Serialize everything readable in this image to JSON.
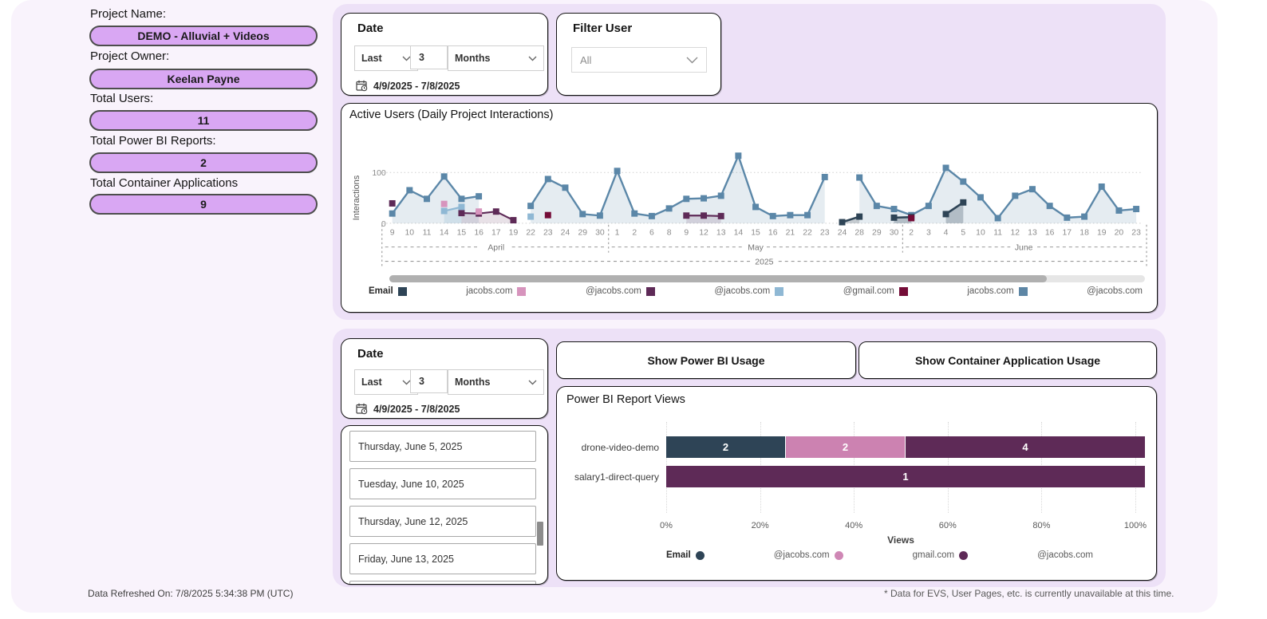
{
  "sidebar": {
    "fields": [
      {
        "label": "Project Name:",
        "value": "DEMO - Alluvial + Videos"
      },
      {
        "label": "Project Owner:",
        "value": "Keelan Payne"
      },
      {
        "label": "Total Users:",
        "value": "11"
      },
      {
        "label": "Total Power BI Reports:",
        "value": "2"
      },
      {
        "label": "Total Container Applications",
        "value": "9"
      }
    ],
    "refresh_note": "Data Refreshed On: 7/8/2025 5:34:38 PM (UTC)"
  },
  "filters": {
    "date_top": {
      "title": "Date",
      "mode": "Last",
      "count": "3",
      "unit": "Months",
      "range": "4/9/2025 - 7/8/2025"
    },
    "user": {
      "title": "Filter User",
      "value": "All"
    },
    "date_bottom": {
      "title": "Date",
      "mode": "Last",
      "count": "3",
      "unit": "Months",
      "range": "4/9/2025 - 7/8/2025"
    }
  },
  "buttons": {
    "power_bi": "Show Power BI Usage",
    "container": "Show Container Application Usage"
  },
  "date_list": [
    "Thursday, June 5, 2025",
    "Tuesday, June 10, 2025",
    "Thursday, June 12, 2025",
    "Friday, June 13, 2025"
  ],
  "footnote": "* Data for EVS, User Pages, etc. is currently unavailable at this time.",
  "chart_data": [
    {
      "type": "line",
      "title": "Active Users (Daily Project Interactions)",
      "ylabel": "Interactions",
      "yticks": [
        0,
        100
      ],
      "ylim": [
        0,
        140
      ],
      "year_label": "2025",
      "categories": [
        "9",
        "10",
        "11",
        "14",
        "15",
        "16",
        "17",
        "19",
        "22",
        "23",
        "24",
        "29",
        "30",
        "1",
        "2",
        "6",
        "8",
        "9",
        "12",
        "13",
        "14",
        "15",
        "16",
        "21",
        "22",
        "23",
        "24",
        "28",
        "29",
        "30",
        "2",
        "3",
        "4",
        "5",
        "10",
        "11",
        "12",
        "13",
        "16",
        "17",
        "18",
        "19",
        "20",
        "23"
      ],
      "month_groups": [
        {
          "label": "April",
          "start": 0,
          "end": 12
        },
        {
          "label": "May",
          "start": 13,
          "end": 29
        },
        {
          "label": "June",
          "start": 30,
          "end": 43
        }
      ],
      "series": [
        {
          "name": "jacobs.com",
          "color": "#5b87a8",
          "fill": "rgba(91,135,168,0.16)",
          "area": true,
          "lw": 2.4,
          "msize": 8,
          "values": [
            19,
            65,
            48,
            92,
            48,
            53,
            null,
            null,
            34,
            87,
            70,
            18,
            15,
            103,
            19,
            14,
            29,
            48,
            49,
            54,
            133,
            32,
            14,
            16,
            16,
            91,
            null,
            90,
            34,
            28,
            16,
            34,
            109,
            82,
            51,
            10,
            54,
            67,
            34,
            11,
            13,
            72,
            25,
            28
          ]
        },
        {
          "name": "Email",
          "color": "#2e4456",
          "fill": "rgba(46,68,86,0.28)",
          "area": true,
          "lw": 2.6,
          "msize": 8,
          "values": [
            null,
            null,
            null,
            null,
            null,
            null,
            null,
            null,
            null,
            null,
            null,
            null,
            null,
            null,
            null,
            null,
            null,
            null,
            null,
            null,
            null,
            null,
            null,
            null,
            null,
            null,
            2,
            13,
            null,
            11,
            12,
            null,
            18,
            41,
            null,
            null,
            null,
            null,
            null,
            null,
            null,
            null,
            null,
            null
          ]
        },
        {
          "name": "@jacobs.com",
          "color": "#5e2a57",
          "fill": "rgba(94,42,87,0.14)",
          "area": true,
          "lw": 2.2,
          "msize": 8,
          "values": [
            39,
            null,
            null,
            null,
            20,
            19,
            23,
            6,
            null,
            null,
            null,
            null,
            null,
            null,
            null,
            null,
            null,
            15,
            15,
            14,
            null,
            null,
            null,
            null,
            null,
            null,
            null,
            null,
            null,
            null,
            null,
            null,
            null,
            null,
            null,
            null,
            null,
            null,
            null,
            null,
            null,
            null,
            null,
            null
          ]
        },
        {
          "name": "@jacobs.com",
          "color": "#8fb8d4",
          "fill": "rgba(143,184,212,0.25)",
          "area": true,
          "lw": 2.2,
          "msize": 8,
          "values": [
            null,
            null,
            null,
            24,
            32,
            null,
            null,
            null,
            13,
            null,
            null,
            null,
            null,
            null,
            null,
            null,
            null,
            null,
            null,
            null,
            null,
            null,
            null,
            null,
            null,
            null,
            null,
            null,
            null,
            null,
            null,
            null,
            null,
            null,
            null,
            null,
            null,
            null,
            null,
            null,
            null,
            null,
            null,
            null
          ]
        },
        {
          "name": "jacobs.com",
          "color": "#d794bd",
          "area": false,
          "lw": 2,
          "msize": 8,
          "values": [
            null,
            null,
            null,
            38,
            null,
            23,
            null,
            null,
            null,
            null,
            null,
            null,
            null,
            null,
            null,
            null,
            null,
            null,
            null,
            null,
            null,
            null,
            null,
            null,
            null,
            null,
            null,
            null,
            null,
            null,
            null,
            null,
            null,
            null,
            null,
            null,
            null,
            null,
            null,
            null,
            null,
            null,
            null,
            null
          ]
        },
        {
          "name": "@gmail.com",
          "color": "#740c37",
          "area": false,
          "lw": 2,
          "msize": 8,
          "values": [
            null,
            null,
            null,
            null,
            null,
            null,
            null,
            null,
            null,
            16,
            null,
            null,
            null,
            null,
            null,
            null,
            null,
            null,
            null,
            null,
            null,
            null,
            null,
            null,
            null,
            null,
            null,
            null,
            null,
            null,
            10,
            null,
            null,
            null,
            null,
            null,
            null,
            null,
            null,
            null,
            null,
            null,
            null,
            null
          ]
        }
      ],
      "legend": [
        {
          "label": "Email",
          "color": "#2e4456",
          "bold": true
        },
        {
          "label": "jacobs.com",
          "color": "#d794bd"
        },
        {
          "label": "@jacobs.com",
          "color": "#5e2a57"
        },
        {
          "label": "@jacobs.com",
          "color": "#8fb8d4"
        },
        {
          "label": "@gmail.com",
          "color": "#740c37"
        },
        {
          "label": "jacobs.com",
          "color": "#5d86a5"
        },
        {
          "label": "@jacobs.com",
          "color": null
        }
      ],
      "scrollbar_pct": 87
    },
    {
      "type": "bar",
      "title": "Power BI Report Views",
      "xlabel": "Views",
      "xticks": [
        "0%",
        "20%",
        "40%",
        "60%",
        "80%",
        "100%"
      ],
      "bars": [
        {
          "label": "drone-video-demo",
          "segments": [
            {
              "name": "Email",
              "value": "2",
              "pct": 25,
              "color": "#2e4456"
            },
            {
              "name": "@jacobs.com",
              "value": "2",
              "pct": 25,
              "color": "#cc82b1"
            },
            {
              "name": "gmail.com",
              "value": "4",
              "pct": 50,
              "color": "#5e2a57"
            }
          ]
        },
        {
          "label": "salary1-direct-query",
          "segments": [
            {
              "name": "gmail.com",
              "value": "1",
              "pct": 100,
              "color": "#5e2a57"
            }
          ]
        }
      ],
      "legend": [
        {
          "label": "Email",
          "color": "#2e4456",
          "bold": true
        },
        {
          "label": "@jacobs.com",
          "color": "#cf87b5"
        },
        {
          "label": "gmail.com",
          "color": "#5e2a57"
        },
        {
          "label": "@jacobs.com",
          "color": null
        }
      ]
    }
  ]
}
